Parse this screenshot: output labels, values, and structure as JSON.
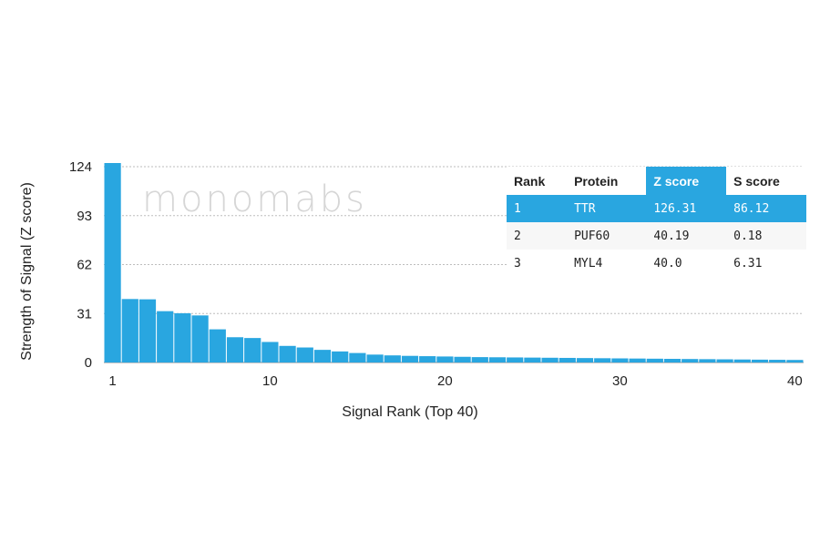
{
  "chart_data": {
    "type": "bar",
    "title": "",
    "xlabel": "Signal Rank (Top 40)",
    "ylabel": "Strength of Signal (Z score)",
    "ylim": [
      0,
      124
    ],
    "yticks": [
      0,
      31,
      62,
      93,
      124
    ],
    "xticks": [
      1,
      10,
      20,
      30,
      40
    ],
    "grid": "horizontal dashed",
    "bar_color": "#29a6e0",
    "x": [
      1,
      2,
      3,
      4,
      5,
      6,
      7,
      8,
      9,
      10,
      11,
      12,
      13,
      14,
      15,
      16,
      17,
      18,
      19,
      20,
      21,
      22,
      23,
      24,
      25,
      26,
      27,
      28,
      29,
      30,
      31,
      32,
      33,
      34,
      35,
      36,
      37,
      38,
      39,
      40
    ],
    "values": [
      126.31,
      40.19,
      40.0,
      32.5,
      31.2,
      29.8,
      21.0,
      16.0,
      15.5,
      13.0,
      10.5,
      9.5,
      8.0,
      7.0,
      6.0,
      5.0,
      4.5,
      4.2,
      4.0,
      3.8,
      3.6,
      3.4,
      3.3,
      3.2,
      3.1,
      3.0,
      2.9,
      2.8,
      2.7,
      2.6,
      2.5,
      2.4,
      2.3,
      2.2,
      2.1,
      2.0,
      1.9,
      1.8,
      1.7,
      1.6
    ]
  },
  "watermark": {
    "text": "monomabs"
  },
  "table": {
    "headers": [
      "Rank",
      "Protein",
      "Z score",
      "S score"
    ],
    "rows": [
      {
        "rank": "1",
        "protein": "TTR",
        "z": "126.31",
        "s": "86.12"
      },
      {
        "rank": "2",
        "protein": "PUF60",
        "z": "40.19",
        "s": "0.18"
      },
      {
        "rank": "3",
        "protein": "MYL4",
        "z": "40.0",
        "s": "6.31"
      }
    ],
    "highlight_color": "#29a6e0"
  }
}
